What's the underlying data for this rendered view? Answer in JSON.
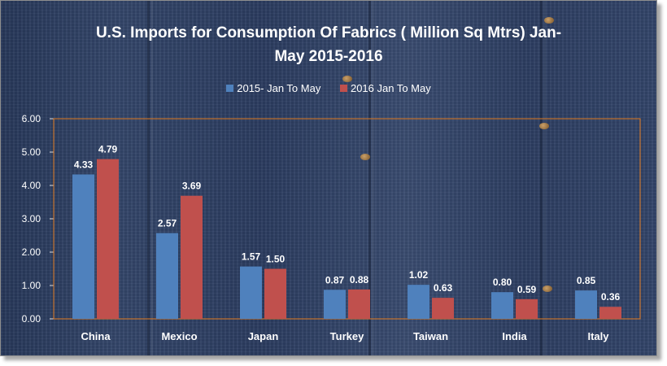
{
  "chart_data": {
    "type": "bar",
    "title_line1": "U.S. Imports for Consumption Of Fabrics ( Million Sq Mtrs) Jan-",
    "title_line2": "May 2015-2016",
    "categories": [
      "China",
      "Mexico",
      "Japan",
      "Turkey",
      "Taiwan",
      "India",
      "Italy"
    ],
    "series": [
      {
        "name": "2015- Jan To May",
        "color": "#4f81bd",
        "values": [
          4.33,
          2.57,
          1.57,
          0.87,
          1.02,
          0.8,
          0.85
        ],
        "labels": [
          "4.33",
          "2.57",
          "1.57",
          "0.87",
          "1.02",
          "0.80",
          "0.85"
        ]
      },
      {
        "name": "2016 Jan To May",
        "color": "#c0504d",
        "values": [
          4.79,
          3.69,
          1.5,
          0.88,
          0.63,
          0.59,
          0.36
        ],
        "labels": [
          "4.79",
          "3.69",
          "1.50",
          "0.88",
          "0.63",
          "0.59",
          "0.36"
        ]
      }
    ],
    "yticks": [
      "0.00",
      "1.00",
      "2.00",
      "3.00",
      "4.00",
      "5.00",
      "6.00"
    ],
    "ylim": [
      0,
      6
    ],
    "grid": false,
    "legend_position": "top"
  }
}
